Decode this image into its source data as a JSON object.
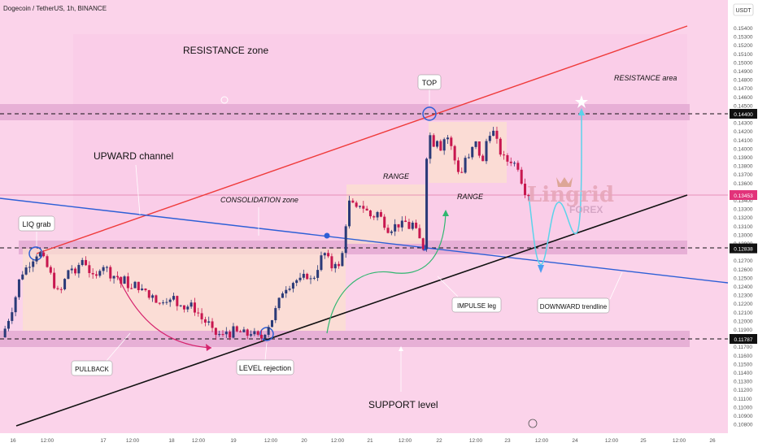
{
  "header": {
    "symbol_title": "Dogecoin / TetherUS, 1h, BINANCE",
    "currency": "USDT"
  },
  "chart_data": {
    "type": "candlestick",
    "title": "Dogecoin / TetherUS, 1h, BINANCE",
    "y_axis": {
      "unit": "USDT",
      "range": [
        0.1078,
        0.155
      ],
      "ticks": [
        "0.15400",
        "0.15300",
        "0.15200",
        "0.15100",
        "0.15000",
        "0.14900",
        "0.14800",
        "0.14700",
        "0.14600",
        "0.14500",
        "0.14300",
        "0.14200",
        "0.14100",
        "0.14000",
        "0.13900",
        "0.13800",
        "0.13700",
        "0.13600",
        "0.13500",
        "0.13400",
        "0.13300",
        "0.13200",
        "0.13100",
        "0.13000",
        "0.12900",
        "0.12700",
        "0.12600",
        "0.12500",
        "0.12400",
        "0.12300",
        "0.12200",
        "0.12100",
        "0.12000",
        "0.11900",
        "0.11700",
        "0.11600",
        "0.11500",
        "0.11400",
        "0.11300",
        "0.11200",
        "0.11100",
        "0.11000",
        "0.10900",
        "0.10800"
      ]
    },
    "x_axis": {
      "tick_labels": [
        "16",
        "12:00",
        "17",
        "12:00",
        "18",
        "12:00",
        "19",
        "12:00",
        "20",
        "12:00",
        "21",
        "12:00",
        "22",
        "12:00",
        "23",
        "12:00",
        "24",
        "12:00",
        "25",
        "12:00",
        "26"
      ]
    },
    "price_levels": [
      {
        "label": "0.14400",
        "value": 0.144
      },
      {
        "label": "0.12838",
        "value": 0.12838
      },
      {
        "label": "0.11787",
        "value": 0.11787
      }
    ],
    "current_price": {
      "label": "0.13453",
      "value": 0.13453
    },
    "price_path": [
      [
        0,
        0.1175
      ],
      [
        5,
        0.1182
      ],
      [
        10,
        0.1195
      ],
      [
        15,
        0.1208
      ],
      [
        20,
        0.1222
      ],
      [
        25,
        0.1245
      ],
      [
        30,
        0.1256
      ],
      [
        35,
        0.1262
      ],
      [
        40,
        0.1268
      ],
      [
        45,
        0.1275
      ],
      [
        50,
        0.128
      ],
      [
        55,
        0.1272
      ],
      [
        60,
        0.1262
      ],
      [
        65,
        0.1252
      ],
      [
        70,
        0.1238
      ],
      [
        75,
        0.123
      ],
      [
        80,
        0.1241
      ],
      [
        85,
        0.1258
      ],
      [
        90,
        0.1262
      ],
      [
        95,
        0.125
      ],
      [
        100,
        0.1268
      ],
      [
        105,
        0.1272
      ],
      [
        110,
        0.1262
      ],
      [
        115,
        0.125
      ],
      [
        120,
        0.1248
      ],
      [
        125,
        0.1262
      ],
      [
        130,
        0.1265
      ],
      [
        135,
        0.1258
      ],
      [
        140,
        0.125
      ],
      [
        145,
        0.1255
      ],
      [
        150,
        0.1242
      ],
      [
        155,
        0.1248
      ],
      [
        160,
        0.124
      ],
      [
        165,
        0.1235
      ],
      [
        170,
        0.1246
      ],
      [
        175,
        0.1232
      ],
      [
        180,
        0.1238
      ],
      [
        185,
        0.1226
      ],
      [
        190,
        0.1232
      ],
      [
        195,
        0.1222
      ],
      [
        200,
        0.1218
      ],
      [
        205,
        0.123
      ],
      [
        210,
        0.122
      ],
      [
        215,
        0.1228
      ],
      [
        220,
        0.1218
      ],
      [
        225,
        0.1222
      ],
      [
        230,
        0.1212
      ],
      [
        235,
        0.122
      ],
      [
        240,
        0.1214
      ],
      [
        245,
        0.121
      ],
      [
        250,
        0.1202
      ],
      [
        255,
        0.1198
      ],
      [
        260,
        0.1196
      ],
      [
        265,
        0.1182
      ],
      [
        270,
        0.1186
      ],
      [
        275,
        0.118
      ],
      [
        280,
        0.1188
      ],
      [
        285,
        0.1184
      ],
      [
        290,
        0.119
      ],
      [
        295,
        0.1184
      ],
      [
        300,
        0.1188
      ],
      [
        305,
        0.1182
      ],
      [
        310,
        0.1187
      ],
      [
        315,
        0.1184
      ],
      [
        320,
        0.118
      ],
      [
        325,
        0.118
      ],
      [
        330,
        0.1192
      ],
      [
        335,
        0.1198
      ],
      [
        340,
        0.121
      ],
      [
        345,
        0.1222
      ],
      [
        350,
        0.1235
      ],
      [
        355,
        0.124
      ],
      [
        360,
        0.1242
      ],
      [
        365,
        0.1248
      ],
      [
        370,
        0.1245
      ],
      [
        375,
        0.125
      ],
      [
        380,
        0.1252
      ],
      [
        385,
        0.1246
      ],
      [
        390,
        0.1254
      ],
      [
        395,
        0.1268
      ],
      [
        400,
        0.128
      ],
      [
        405,
        0.1272
      ],
      [
        410,
        0.1262
      ],
      [
        415,
        0.127
      ],
      [
        420,
        0.1258
      ],
      [
        425,
        0.129
      ],
      [
        430,
        0.1338
      ],
      [
        435,
        0.1335
      ],
      [
        440,
        0.1328
      ],
      [
        445,
        0.1336
      ],
      [
        450,
        0.133
      ],
      [
        455,
        0.1325
      ],
      [
        460,
        0.1318
      ],
      [
        465,
        0.1327
      ],
      [
        470,
        0.132
      ],
      [
        475,
        0.1312
      ],
      [
        480,
        0.1305
      ],
      [
        485,
        0.1308
      ],
      [
        490,
        0.1312
      ],
      [
        495,
        0.131
      ],
      [
        500,
        0.1315
      ],
      [
        505,
        0.1308
      ],
      [
        510,
        0.1313
      ],
      [
        515,
        0.13
      ],
      [
        520,
        0.129
      ],
      [
        523,
        0.1284
      ],
      [
        525,
        0.137
      ],
      [
        528,
        0.1408
      ],
      [
        531,
        0.1415
      ],
      [
        535,
        0.1405
      ],
      [
        540,
        0.1412
      ],
      [
        545,
        0.1398
      ],
      [
        550,
        0.1418
      ],
      [
        555,
        0.1408
      ],
      [
        560,
        0.139
      ],
      [
        565,
        0.1375
      ],
      [
        570,
        0.1372
      ],
      [
        575,
        0.1392
      ],
      [
        580,
        0.1385
      ],
      [
        585,
        0.141
      ],
      [
        590,
        0.14
      ],
      [
        595,
        0.1378
      ],
      [
        600,
        0.1408
      ],
      [
        605,
        0.142
      ],
      [
        610,
        0.1418
      ],
      [
        615,
        0.14
      ],
      [
        620,
        0.139
      ],
      [
        625,
        0.1385
      ],
      [
        630,
        0.1386
      ],
      [
        635,
        0.1382
      ],
      [
        640,
        0.1378
      ],
      [
        645,
        0.1355
      ],
      [
        650,
        0.1346
      ],
      [
        655,
        0.1348
      ]
    ]
  },
  "annotations": {
    "resistance_zone": "RESISTANCE zone",
    "resistance_area": "RESISTANCE area",
    "top": "TOP",
    "upward_channel": "UPWARD channel",
    "consolidation_zone": "CONSOLIDATION zone",
    "range_1": "RANGE",
    "range_2": "RANGE",
    "liq_grab": "LIQ grab",
    "impulse_leg": "IMPULSE leg",
    "downward_trendline": "DOWNWARD trendline",
    "pullback": "PULLBACK",
    "level_rejection": "LEVEL rejection",
    "support_level": "SUPPORT level"
  },
  "logo": {
    "main": "Lingrid",
    "sub": "FOREX"
  },
  "colors": {
    "background": "#fbd3ea",
    "bull": "#2a3a78",
    "bear": "#c8174f",
    "resistance_line": "#ef3b3b",
    "downtrend_line": "#2d5fd6",
    "support_line": "#111111",
    "projection": "#5bd3ea",
    "zone_band": "#e7b2d6"
  }
}
